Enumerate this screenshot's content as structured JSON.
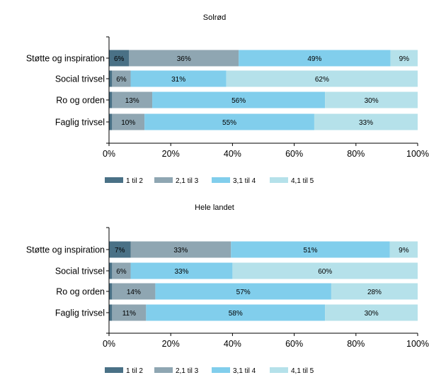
{
  "chart_data": [
    {
      "type": "bar",
      "orientation": "horizontal",
      "stacked": true,
      "title": "Solrød",
      "categories": [
        "Støtte og inspiration",
        "Social trivsel",
        "Ro og orden",
        "Faglig trivsel"
      ],
      "xlim": [
        0,
        100
      ],
      "xticks": [
        "0%",
        "20%",
        "40%",
        "60%",
        "80%",
        "100%"
      ],
      "legend_position": "bottom",
      "series": [
        {
          "name": "1 til 2",
          "color": "#4a7186",
          "values": [
            6.5,
            1,
            1,
            1
          ]
        },
        {
          "name": "2,1 til 3",
          "color": "#8fa6b2",
          "values": [
            35.5,
            6,
            13,
            10.5
          ]
        },
        {
          "name": "3,1 til 4",
          "color": "#81ceec",
          "values": [
            49.2,
            31,
            56,
            55
          ]
        },
        {
          "name": "4,1 til 5",
          "color": "#b5e1ea",
          "values": [
            8.8,
            62,
            30,
            33.5
          ]
        }
      ],
      "labels": [
        [
          "6%",
          "",
          "",
          ""
        ],
        [
          "36%",
          "6%",
          "13%",
          "10%"
        ],
        [
          "49%",
          "31%",
          "56%",
          "55%"
        ],
        [
          "9%",
          "62%",
          "30%",
          "33%"
        ]
      ]
    },
    {
      "type": "bar",
      "orientation": "horizontal",
      "stacked": true,
      "title": "Hele landet",
      "categories": [
        "Støtte og inspiration",
        "Social trivsel",
        "Ro og orden",
        "Faglig trivsel"
      ],
      "xlim": [
        0,
        100
      ],
      "xticks": [
        "0%",
        "20%",
        "40%",
        "60%",
        "80%",
        "100%"
      ],
      "legend_position": "bottom",
      "series": [
        {
          "name": "1 til 2",
          "color": "#4a7186",
          "values": [
            7,
            1,
            1,
            1
          ]
        },
        {
          "name": "2,1 til 3",
          "color": "#8fa6b2",
          "values": [
            32.5,
            6,
            14,
            11
          ]
        },
        {
          "name": "3,1 til 4",
          "color": "#81ceec",
          "values": [
            51.5,
            33,
            57,
            58
          ]
        },
        {
          "name": "4,1 til 5",
          "color": "#b5e1ea",
          "values": [
            9,
            60,
            28,
            30
          ]
        }
      ],
      "labels": [
        [
          "7%",
          "",
          "",
          ""
        ],
        [
          "33%",
          "6%",
          "14%",
          "11%"
        ],
        [
          "51%",
          "33%",
          "57%",
          "58%"
        ],
        [
          "9%",
          "60%",
          "28%",
          "30%"
        ]
      ]
    }
  ]
}
